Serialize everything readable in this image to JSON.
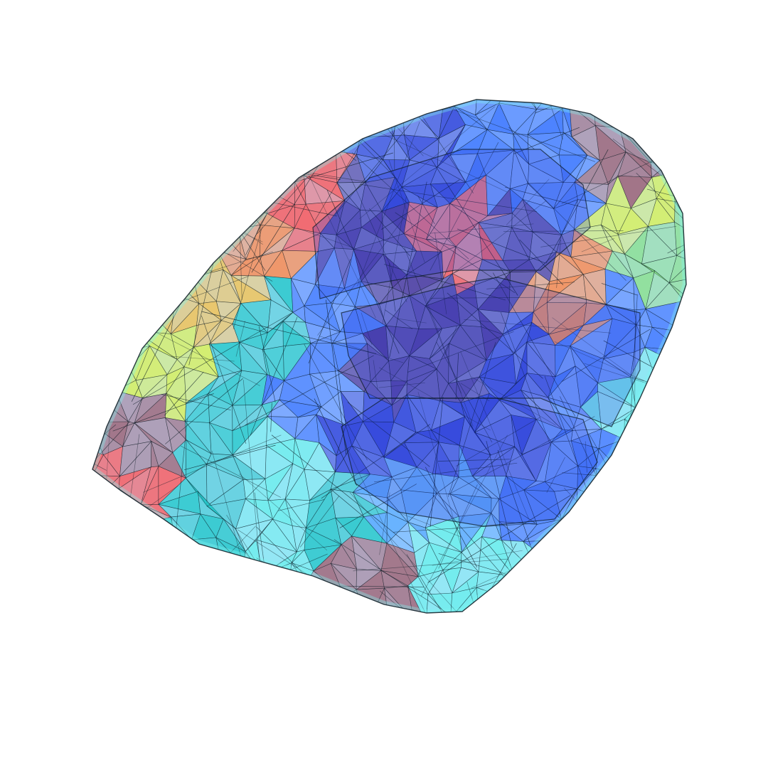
{
  "figure": {
    "type": "3d-translucent-polyhedral-mesh",
    "background": "#ffffff",
    "edge_color": "#0a1a22",
    "palette": [
      "#2f6bff",
      "#1c2fd6",
      "#3a1f8f",
      "#18c6c6",
      "#5ff0ea",
      "#7fe07a",
      "#d9f24a",
      "#f2c14a",
      "#ff7f3a",
      "#ff4b4b",
      "#9a5a6a",
      "#4aa3ff"
    ],
    "outline_color": "#7ff6f2"
  }
}
